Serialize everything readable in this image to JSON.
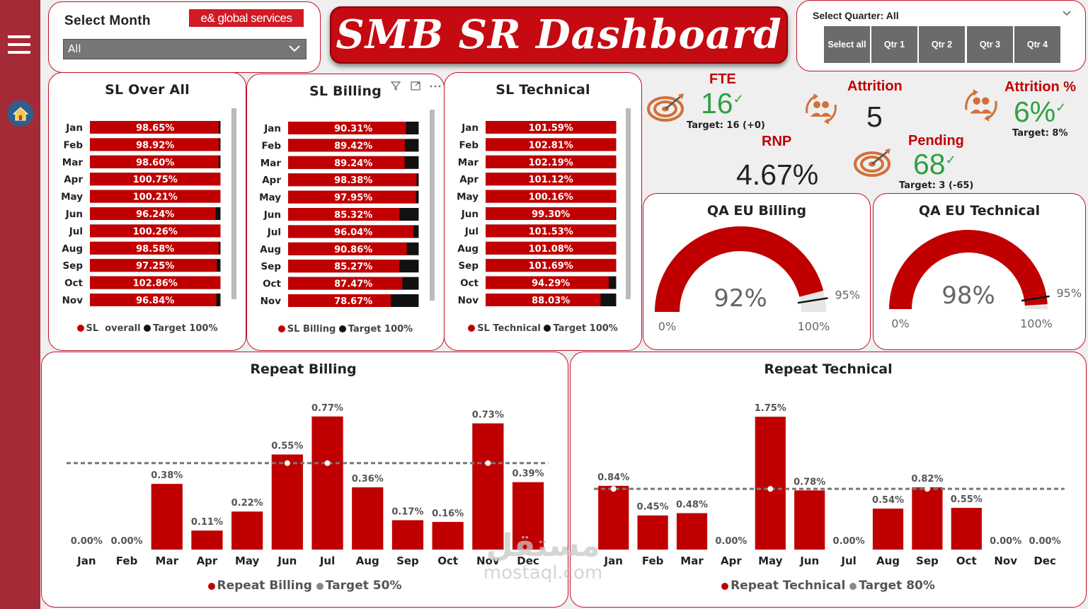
{
  "nav": {
    "menu_icon": "hamburger-icon",
    "home_icon": "home-icon"
  },
  "month_filter": {
    "label": "Select Month",
    "brand": "e& global services",
    "selected": "All"
  },
  "title": "SMB SR Dashboard",
  "quarter_filter": {
    "label": "Select Quarter: All",
    "buttons": [
      "Select all",
      "Qtr 1",
      "Qtr 2",
      "Qtr 3",
      "Qtr 4"
    ]
  },
  "colors": {
    "accent": "#c00000",
    "target": "#111111",
    "kpi_green": "#2ea043",
    "sidebar": "#a52a38"
  },
  "chart_data": [
    {
      "type": "bar",
      "orientation": "horizontal",
      "title": "SL Over All",
      "categories": [
        "Jan",
        "Feb",
        "Mar",
        "Apr",
        "May",
        "Jun",
        "Jul",
        "Aug",
        "Sep",
        "Oct",
        "Nov"
      ],
      "series": [
        {
          "name": "SL  overall",
          "values": [
            98.65,
            98.92,
            98.6,
            100.75,
            100.21,
            96.24,
            100.26,
            98.58,
            97.25,
            102.86,
            96.84
          ]
        },
        {
          "name": "Target 100%",
          "values": [
            100,
            100,
            100,
            100,
            100,
            100,
            100,
            100,
            100,
            100,
            100
          ]
        }
      ],
      "labels": [
        "98.65%",
        "98.92%",
        "98.60%",
        "100.75%",
        "100.21%",
        "96.24%",
        "100.26%",
        "98.58%",
        "97.25%",
        "102.86%",
        "96.84%"
      ],
      "legend": [
        "SL  overall",
        "Target 100%"
      ]
    },
    {
      "type": "bar",
      "orientation": "horizontal",
      "title": "SL Billing",
      "categories": [
        "Jan",
        "Feb",
        "Mar",
        "Apr",
        "May",
        "Jun",
        "Jul",
        "Aug",
        "Sep",
        "Oct",
        "Nov"
      ],
      "series": [
        {
          "name": "SL Billing",
          "values": [
            90.31,
            89.42,
            89.24,
            98.38,
            97.95,
            85.32,
            96.04,
            90.86,
            85.27,
            87.47,
            78.67
          ]
        },
        {
          "name": "Target 100%",
          "values": [
            100,
            100,
            100,
            100,
            100,
            100,
            100,
            100,
            100,
            100,
            100
          ]
        }
      ],
      "labels": [
        "90.31%",
        "89.42%",
        "89.24%",
        "98.38%",
        "97.95%",
        "85.32%",
        "96.04%",
        "90.86%",
        "85.27%",
        "87.47%",
        "78.67%"
      ],
      "legend": [
        "SL Billing",
        "Target 100%"
      ]
    },
    {
      "type": "bar",
      "orientation": "horizontal",
      "title": "SL Technical",
      "categories": [
        "Jan",
        "Feb",
        "Mar",
        "Apr",
        "May",
        "Jun",
        "Jul",
        "Aug",
        "Sep",
        "Oct",
        "Nov"
      ],
      "series": [
        {
          "name": "SL Technical",
          "values": [
            101.59,
            102.81,
            102.19,
            101.12,
            100.16,
            99.3,
            101.53,
            101.08,
            101.69,
            94.29,
            88.03
          ]
        },
        {
          "name": "Target 100%",
          "values": [
            100,
            100,
            100,
            100,
            100,
            100,
            100,
            100,
            100,
            100,
            100
          ]
        }
      ],
      "labels": [
        "101.59%",
        "102.81%",
        "102.19%",
        "101.12%",
        "100.16%",
        "99.30%",
        "101.53%",
        "101.08%",
        "101.69%",
        "94.29%",
        "88.03%"
      ],
      "legend": [
        "SL Technical",
        "Target 100%"
      ]
    },
    {
      "type": "gauge",
      "title": "QA EU Billing",
      "value": 92,
      "value_label": "92%",
      "target": 95,
      "target_label": "95%",
      "min_label": "0%",
      "max_label": "100%"
    },
    {
      "type": "gauge",
      "title": "QA EU Technical",
      "value": 98,
      "value_label": "98%",
      "target": 95,
      "target_label": "95%",
      "min_label": "0%",
      "max_label": "100%"
    },
    {
      "type": "bar",
      "title": "Repeat Billing",
      "categories": [
        "Jan",
        "Feb",
        "Mar",
        "Apr",
        "May",
        "Jun",
        "Jul",
        "Aug",
        "Sep",
        "Oct",
        "Nov",
        "Dec"
      ],
      "series": [
        {
          "name": "Repeat Billing",
          "values": [
            0.0,
            0.0,
            0.38,
            0.11,
            0.22,
            0.55,
            0.77,
            0.36,
            0.17,
            0.16,
            0.73,
            0.39
          ]
        },
        {
          "name": "Target 50%",
          "values": [
            0.5,
            0.5,
            0.5,
            0.5,
            0.5,
            0.5,
            0.5,
            0.5,
            0.5,
            0.5,
            0.5,
            0.5
          ]
        }
      ],
      "labels": [
        "0.00%",
        "0.00%",
        "0.38%",
        "0.11%",
        "0.22%",
        "0.55%",
        "0.77%",
        "0.36%",
        "0.17%",
        "0.16%",
        "0.73%",
        "0.39%"
      ],
      "target_value": 0.5,
      "ylim": [
        0,
        0.9
      ],
      "legend": [
        "Repeat Billing",
        "Target 50%"
      ]
    },
    {
      "type": "bar",
      "title": "Repeat Technical",
      "categories": [
        "Jan",
        "Feb",
        "Mar",
        "Apr",
        "May",
        "Jun",
        "Jul",
        "Aug",
        "Sep",
        "Oct",
        "Nov",
        "Dec"
      ],
      "series": [
        {
          "name": "Repeat Technical",
          "values": [
            0.84,
            0.45,
            0.48,
            0.0,
            1.75,
            0.78,
            0.0,
            0.54,
            0.82,
            0.55,
            0.0,
            0.0
          ]
        },
        {
          "name": "Target 80%",
          "values": [
            0.8,
            0.8,
            0.8,
            0.8,
            0.8,
            0.8,
            0.8,
            0.8,
            0.8,
            0.8,
            0.8,
            0.8
          ]
        }
      ],
      "labels": [
        "0.84%",
        "0.45%",
        "0.48%",
        "0.00%",
        "1.75%",
        "0.78%",
        "0.00%",
        "0.54%",
        "0.82%",
        "0.55%",
        "0.00%",
        "0.00%"
      ],
      "target_value": 0.8,
      "ylim": [
        0,
        2.05
      ],
      "legend": [
        "Repeat Technical",
        "Target 80%"
      ]
    }
  ],
  "kpis": {
    "fte": {
      "label": "FTE",
      "value": "16",
      "check": "✓",
      "target": "Target: 16 (+0)"
    },
    "attrition": {
      "label": "Attrition",
      "value": "5"
    },
    "attrition_pct": {
      "label": "Attrition %",
      "value": "6%",
      "check": "✓",
      "target": "Target: 8%"
    },
    "rnp": {
      "label": "RNP",
      "value": "4.67%"
    },
    "pending": {
      "label": "Pending",
      "value": "68",
      "check": "✓",
      "target": "Target: 3 (-65)"
    }
  },
  "watermark": {
    "arabic": "مستقل",
    "latin": "mostaql.com"
  }
}
